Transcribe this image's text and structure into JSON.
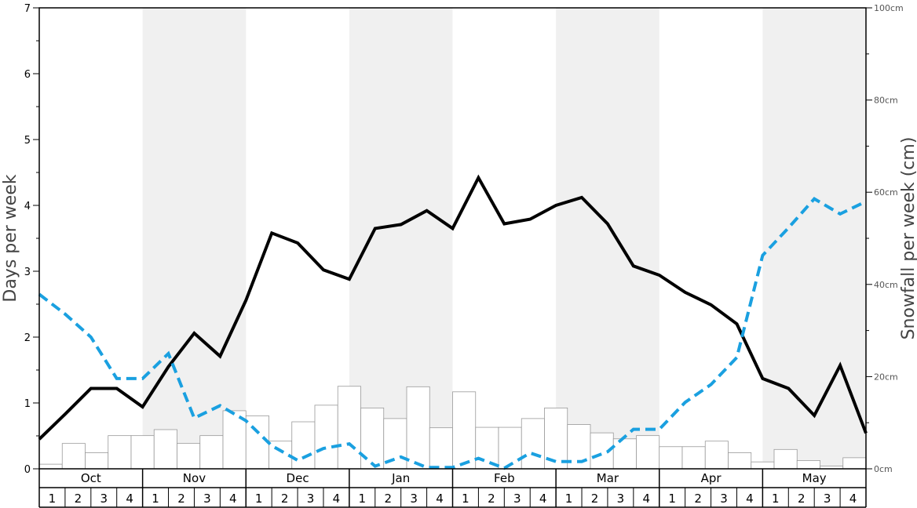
{
  "chart_data": {
    "type": "bar+line",
    "ylabel_left": "Days per week",
    "ylabel_right": "Snowfall per week (cm)",
    "ylim_left": [
      0,
      7
    ],
    "ylim_right": [
      0,
      100
    ],
    "left_ticks": [
      "0",
      "1",
      "2",
      "3",
      "4",
      "5",
      "6",
      "7"
    ],
    "right_ticks": [
      "0cm",
      "20cm",
      "40cm",
      "60cm",
      "80cm",
      "100cm"
    ],
    "months": [
      "Oct",
      "Nov",
      "Dec",
      "Jan",
      "Feb",
      "Mar",
      "Apr",
      "May"
    ],
    "weeks": [
      "1",
      "2",
      "3",
      "4"
    ],
    "shaded_months": [
      "Nov",
      "Jan",
      "Mar",
      "May"
    ],
    "colors": {
      "shade": "#f0f0f0",
      "bar_fill": "#ffffff",
      "bar_stroke": "#999999",
      "solid_line": "#000000",
      "dashed_line": "#1aa0e0"
    },
    "snowfall_bars_cm": [
      1,
      5.5,
      3.5,
      7.2,
      7.2,
      8.5,
      5.5,
      7.2,
      12.6,
      11.5,
      6,
      10.2,
      13.8,
      17.9,
      13.2,
      10.9,
      17.8,
      8.9,
      16.7,
      9,
      9,
      10.9,
      13.2,
      9.6,
      7.8,
      6.5,
      7.2,
      4.8,
      4.8,
      6,
      3.5,
      1.5,
      4.2,
      1.8,
      0.6,
      2.4
    ],
    "series": [
      {
        "name": "",
        "style": "solid",
        "values": [
          0.45,
          0.83,
          1.22,
          1.22,
          0.94,
          1.55,
          2.06,
          1.71,
          2.56,
          3.58,
          3.43,
          3.02,
          2.88,
          3.65,
          3.71,
          3.92,
          3.65,
          4.42,
          3.72,
          3.79,
          4.0,
          4.12,
          3.72,
          3.08,
          2.94,
          2.68,
          2.49,
          2.2,
          1.37,
          1.22,
          0.81,
          1.57,
          0.54
        ]
      },
      {
        "name": "",
        "style": "dashed",
        "values": [
          2.65,
          2.35,
          2.0,
          1.37,
          1.37,
          1.75,
          0.77,
          0.96,
          0.73,
          0.35,
          0.13,
          0.31,
          0.38,
          0.04,
          0.18,
          0.02,
          0.02,
          0.16,
          0.01,
          0.24,
          0.11,
          0.11,
          0.26,
          0.6,
          0.6,
          1.01,
          1.28,
          1.69,
          3.24,
          3.66,
          4.1,
          3.87,
          4.06
        ]
      }
    ]
  }
}
